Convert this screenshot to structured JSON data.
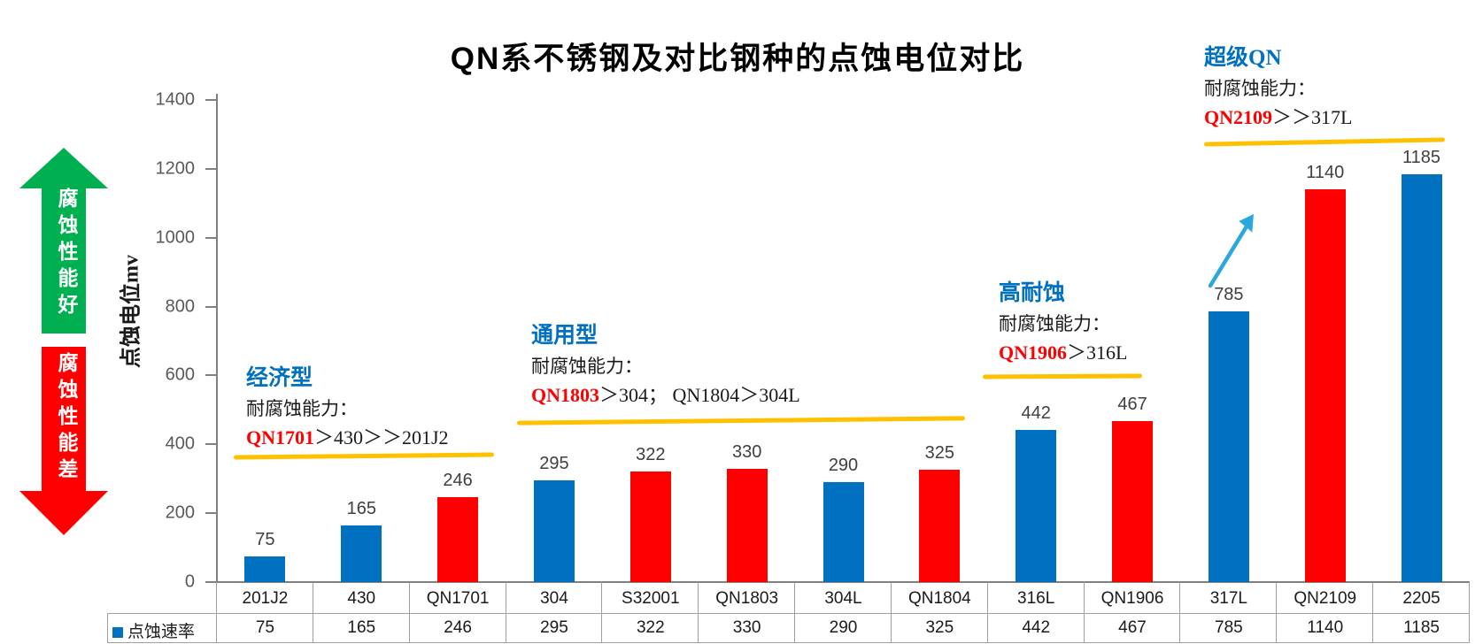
{
  "title": "QN系不锈钢及对比钢种的点蚀电位对比",
  "y_axis": {
    "label": "点蚀电位mv",
    "ticks": [
      "1400",
      "1200",
      "1000",
      "800",
      "600",
      "400",
      "200",
      "0"
    ]
  },
  "side_arrows": {
    "up_label": "腐蚀性能好",
    "down_label": "腐蚀性能差"
  },
  "annotations": [
    {
      "heading": "经济型",
      "subheading": "耐腐蚀能力：",
      "highlight": "QN1701",
      "rest": "＞430＞＞201J2"
    },
    {
      "heading": "通用型",
      "subheading": "耐腐蚀能力：",
      "highlight": "QN1803",
      "rest": "＞304；  QN1804＞304L"
    },
    {
      "heading": "高耐蚀",
      "subheading": "耐腐蚀能力：",
      "highlight": "QN1906",
      "rest": "＞316L"
    },
    {
      "heading": "超级QN",
      "subheading": "耐腐蚀能力：",
      "highlight": "QN2109",
      "rest": "＞＞317L"
    }
  ],
  "colors": {
    "bar-blue": "#0070C0",
    "bar-red": "#FE0000",
    "accent-yellow": "#FFC000",
    "arrow-green": "#00B050",
    "arrow-red": "#FF0000",
    "cyan-arrow": "#2BA7E0",
    "heading-blue": "#0070C0",
    "highlight-red": "#FF0000"
  },
  "chart_data": {
    "type": "bar",
    "title": "QN系不锈钢及对比钢种的点蚀电位对比",
    "categories": [
      "201J2",
      "430",
      "QN1701",
      "304",
      "S32001",
      "QN1803",
      "304L",
      "QN1804",
      "316L",
      "QN1906",
      "317L",
      "QN2109",
      "2205"
    ],
    "series": [
      {
        "name": "点蚀速率",
        "values": [
          75,
          165,
          246,
          295,
          322,
          330,
          290,
          325,
          442,
          467,
          785,
          1140,
          1185
        ]
      }
    ],
    "bar_colors": [
      "#0070C0",
      "#0070C0",
      "#FE0000",
      "#0070C0",
      "#FE0000",
      "#FE0000",
      "#0070C0",
      "#FE0000",
      "#0070C0",
      "#FE0000",
      "#0070C0",
      "#FE0000",
      "#0070C0"
    ],
    "xlabel": "",
    "ylabel": "点蚀电位mv",
    "ylim": [
      0,
      1400
    ],
    "ytick_interval": 200,
    "grid": false,
    "data_labels": true,
    "legend_position": "bottom-table",
    "bottom_table_row": {
      "label": "点蚀速率",
      "values": [
        75,
        165,
        246,
        295,
        322,
        330,
        290,
        325,
        442,
        467,
        785,
        1140,
        1185
      ]
    }
  }
}
